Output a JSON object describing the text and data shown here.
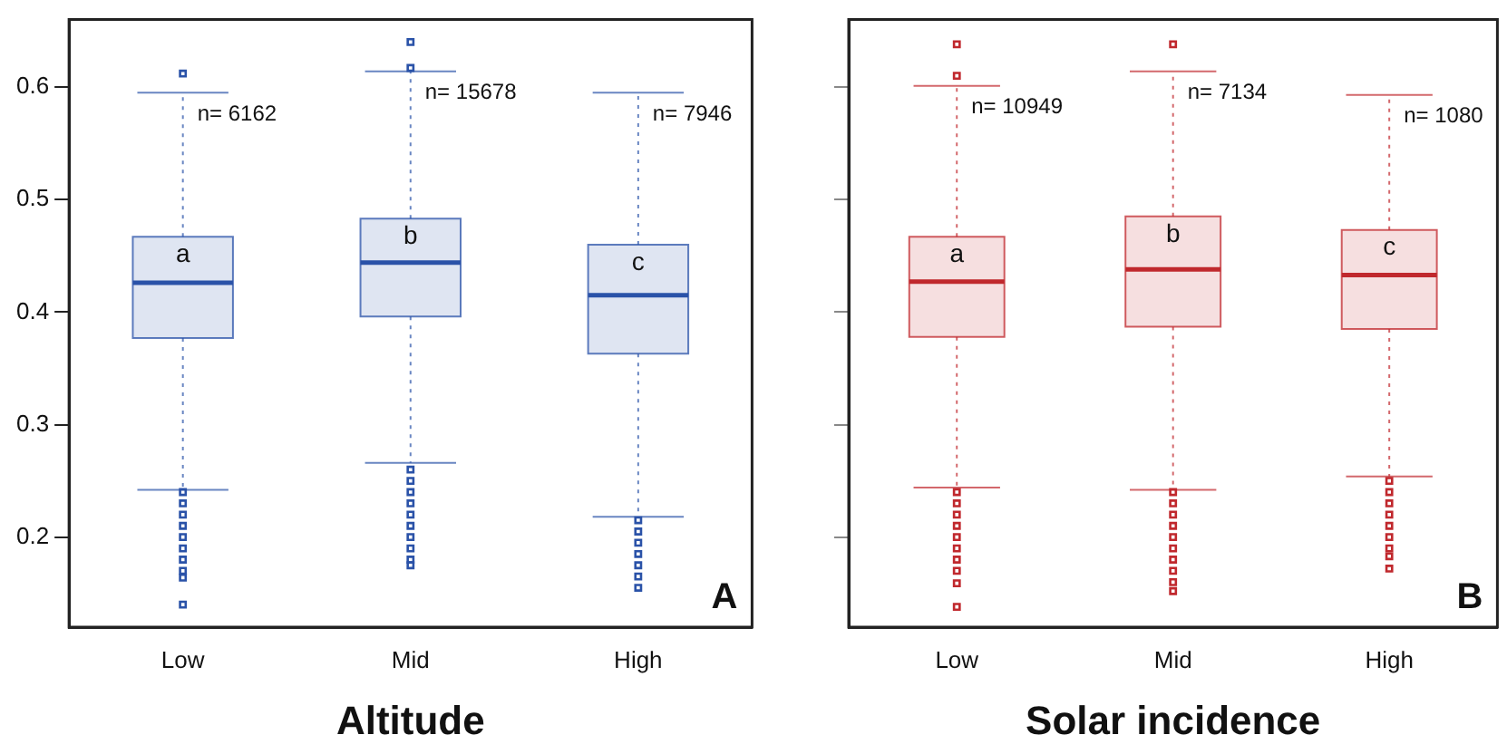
{
  "chart_data": [
    {
      "type": "box",
      "xlabel": "Altitude",
      "categories": [
        "Low",
        "Mid",
        "High"
      ],
      "ylim": [
        0.12,
        0.66
      ],
      "yticks": [
        0.2,
        0.3,
        0.4,
        0.5,
        0.6
      ],
      "grid": false,
      "legend": false,
      "marker": "square",
      "series": [
        {
          "color": "#2a52a8",
          "boxes": [
            {
              "low": 0.242,
              "q1": 0.377,
              "median": 0.426,
              "q3": 0.467,
              "high": 0.595,
              "outliers": [
                0.612,
                0.24,
                0.23,
                0.22,
                0.21,
                0.2,
                0.19,
                0.18,
                0.17,
                0.164,
                0.14
              ]
            },
            {
              "low": 0.266,
              "q1": 0.396,
              "median": 0.444,
              "q3": 0.483,
              "high": 0.614,
              "outliers": [
                0.64,
                0.617,
                0.26,
                0.25,
                0.24,
                0.23,
                0.22,
                0.21,
                0.2,
                0.19,
                0.18,
                0.175
              ]
            },
            {
              "low": 0.218,
              "q1": 0.363,
              "median": 0.415,
              "q3": 0.46,
              "high": 0.595,
              "outliers": [
                0.215,
                0.205,
                0.195,
                0.185,
                0.175,
                0.165,
                0.155
              ]
            }
          ]
        }
      ],
      "annotations": [
        "n= 6162",
        "n= 15678",
        "n= 7946",
        "a",
        "b",
        "c",
        "A"
      ]
    },
    {
      "type": "box",
      "xlabel": "Solar incidence",
      "categories": [
        "Low",
        "Mid",
        "High"
      ],
      "ylim": [
        0.12,
        0.66
      ],
      "yticks": [
        0.2,
        0.3,
        0.4,
        0.5,
        0.6
      ],
      "tick_labels": "x",
      "grid": false,
      "legend": false,
      "marker": "square",
      "series": [
        {
          "color": "#c0282d",
          "boxes": [
            {
              "low": 0.244,
              "q1": 0.378,
              "median": 0.427,
              "q3": 0.467,
              "high": 0.601,
              "outliers": [
                0.638,
                0.61,
                0.24,
                0.23,
                0.22,
                0.21,
                0.2,
                0.19,
                0.18,
                0.17,
                0.159,
                0.138
              ]
            },
            {
              "low": 0.242,
              "q1": 0.387,
              "median": 0.438,
              "q3": 0.485,
              "high": 0.614,
              "outliers": [
                0.638,
                0.24,
                0.23,
                0.22,
                0.21,
                0.2,
                0.19,
                0.18,
                0.17,
                0.16,
                0.152
              ]
            },
            {
              "low": 0.254,
              "q1": 0.385,
              "median": 0.433,
              "q3": 0.473,
              "high": 0.593,
              "outliers": [
                0.25,
                0.24,
                0.23,
                0.22,
                0.21,
                0.2,
                0.19,
                0.183,
                0.172
              ]
            }
          ]
        }
      ],
      "annotations": [
        "n= 10949",
        "n= 7134",
        "n= 1080",
        "a",
        "b",
        "c",
        "B"
      ]
    }
  ]
}
